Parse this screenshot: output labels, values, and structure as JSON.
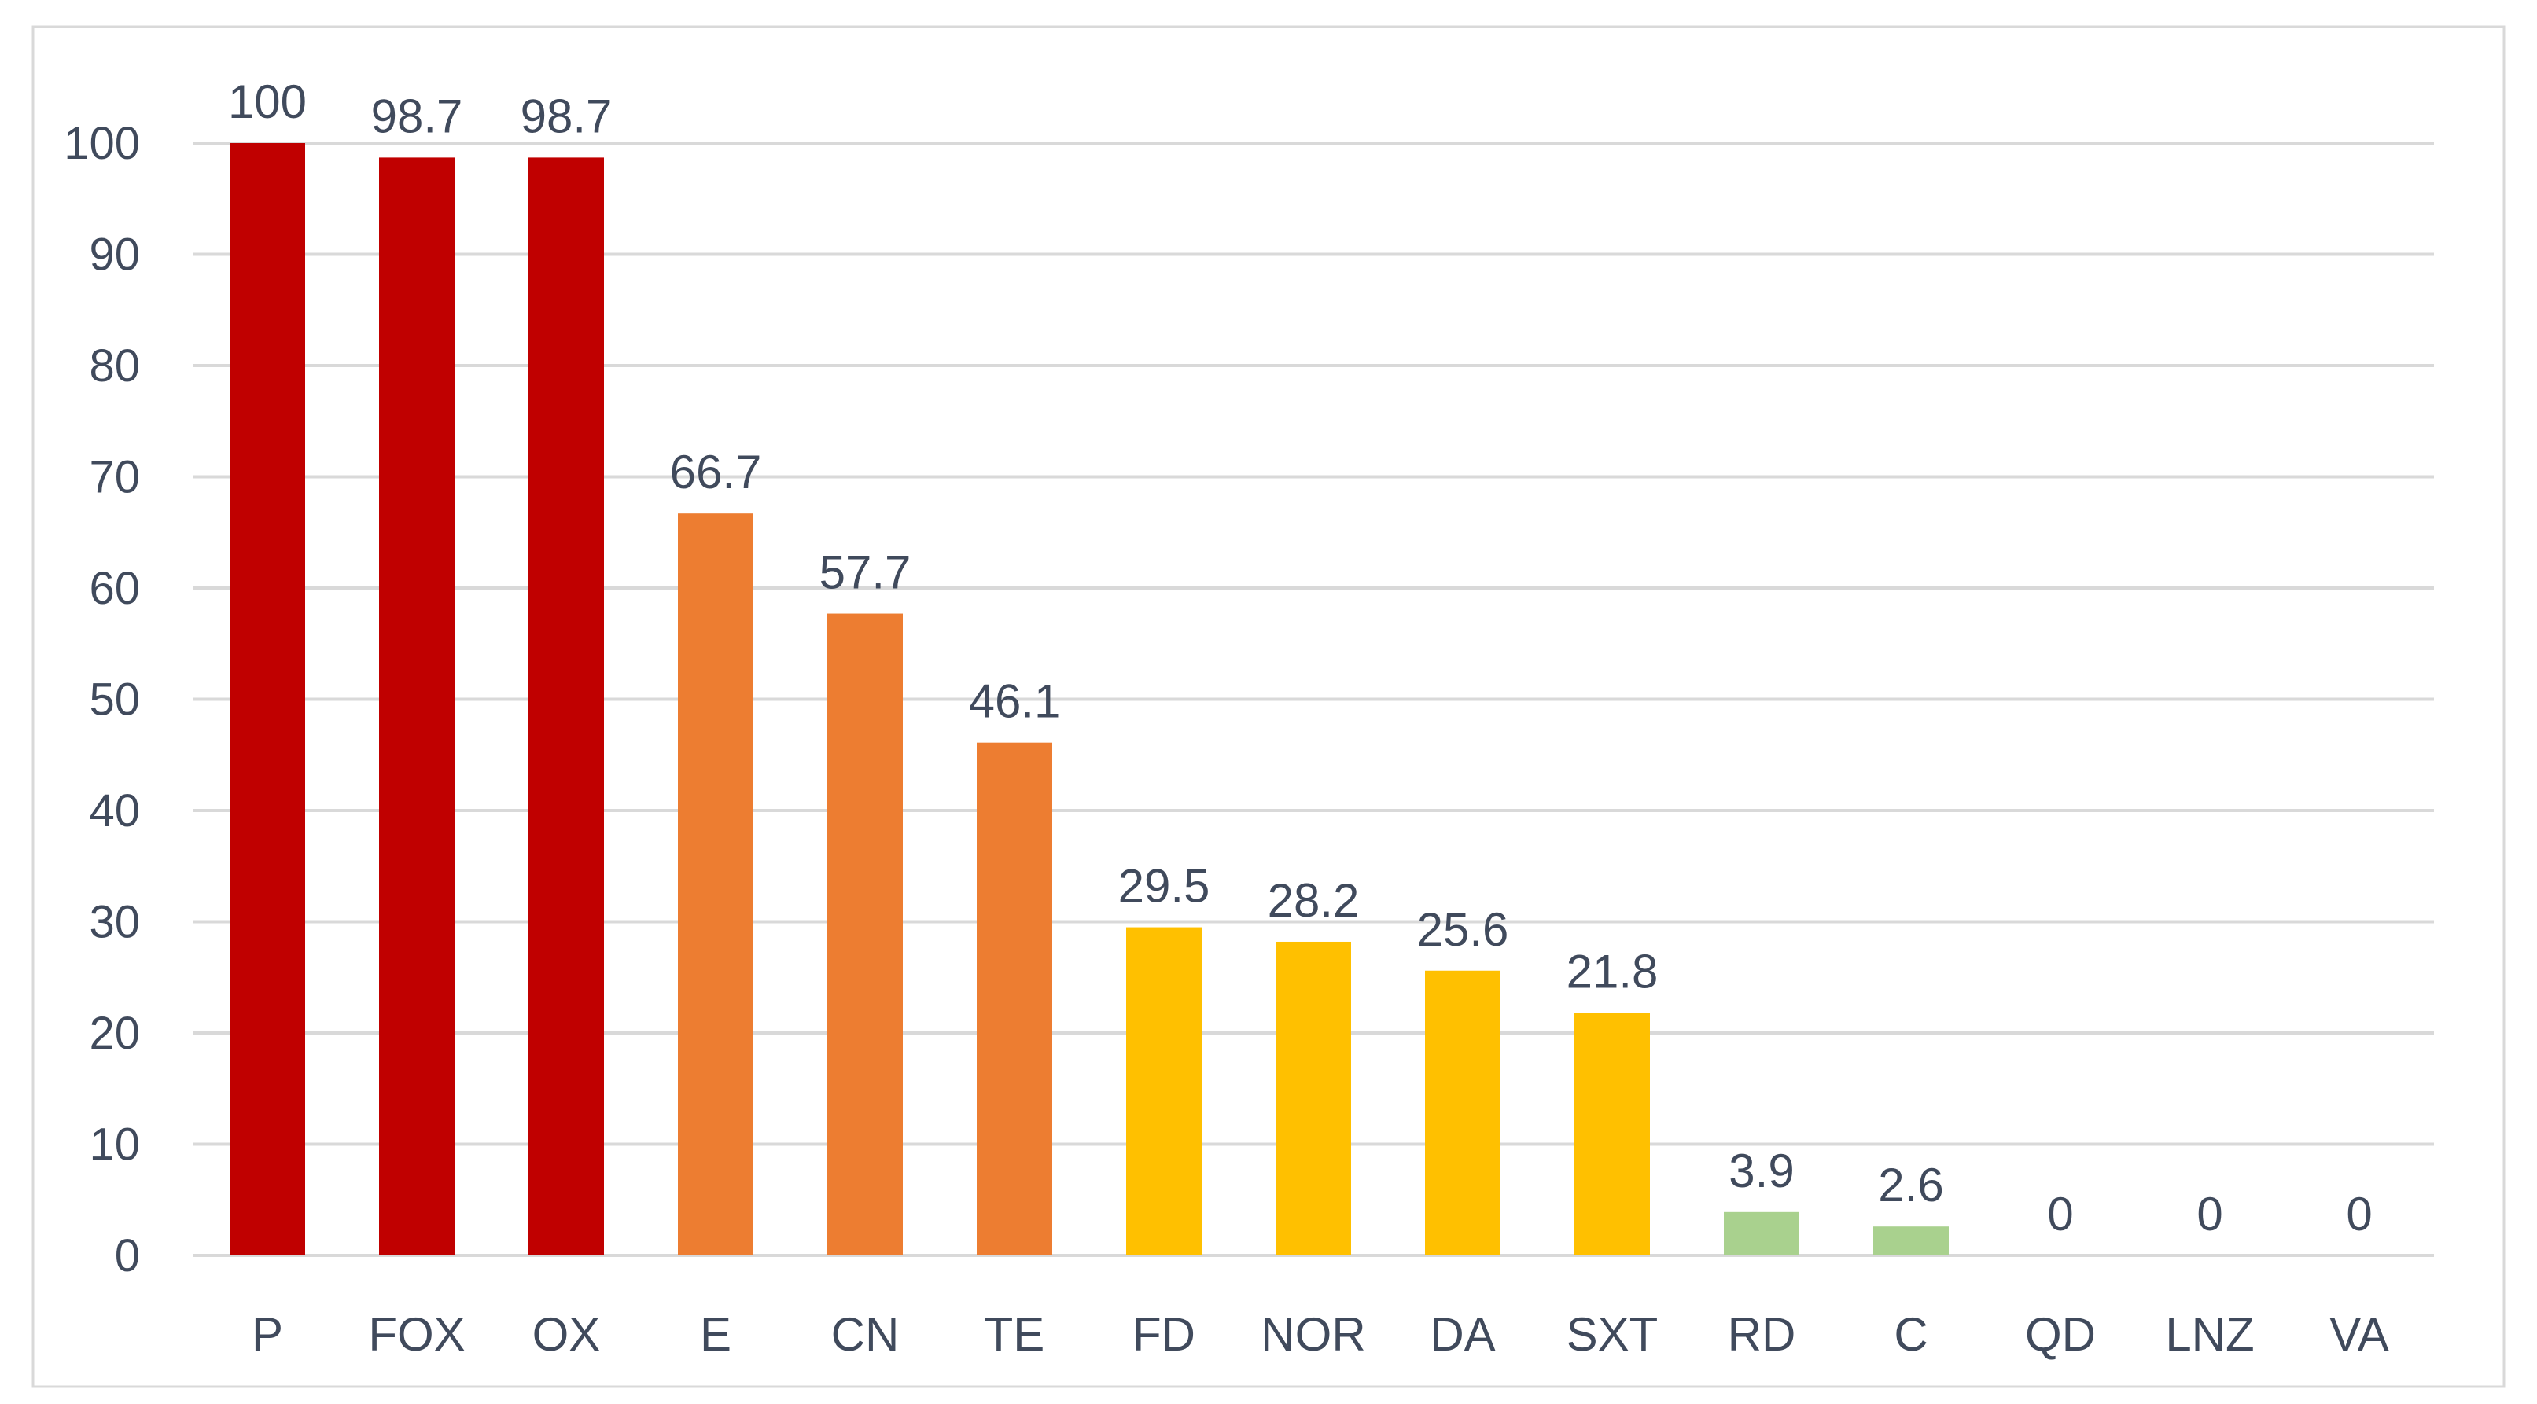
{
  "chart_data": {
    "type": "bar",
    "title": "",
    "xlabel": "",
    "ylabel": "",
    "ylim": [
      0,
      100
    ],
    "yticks": [
      0,
      10,
      20,
      30,
      40,
      50,
      60,
      70,
      80,
      90,
      100
    ],
    "grid": true,
    "legend": "none",
    "categories": [
      "P",
      "FOX",
      "OX",
      "E",
      "CN",
      "TE",
      "FD",
      "NOR",
      "DA",
      "SXT",
      "RD",
      "C",
      "QD",
      "LNZ",
      "VA"
    ],
    "values": [
      100,
      98.7,
      98.7,
      66.7,
      57.7,
      46.1,
      29.5,
      28.2,
      25.6,
      21.8,
      3.9,
      2.6,
      0,
      0,
      0
    ],
    "data_labels": [
      "100",
      "98.7",
      "98.7",
      "66.7",
      "57.7",
      "46.1",
      "29.5",
      "28.2",
      "25.6",
      "21.8",
      "3.9",
      "2.6",
      "0",
      "0",
      "0"
    ],
    "bar_colors": [
      "#c00000",
      "#c00000",
      "#c00000",
      "#ed7d31",
      "#ed7d31",
      "#ed7d31",
      "#ffc000",
      "#ffc000",
      "#ffc000",
      "#ffc000",
      "#a9d18e",
      "#a9d18e",
      "#a9d18e",
      "#a9d18e",
      "#a9d18e"
    ],
    "colors": {
      "grid": "#d9d9d9",
      "axis": "#d9d9d9",
      "label_text": "#404a5c",
      "frame": "#d9d9d9"
    }
  }
}
